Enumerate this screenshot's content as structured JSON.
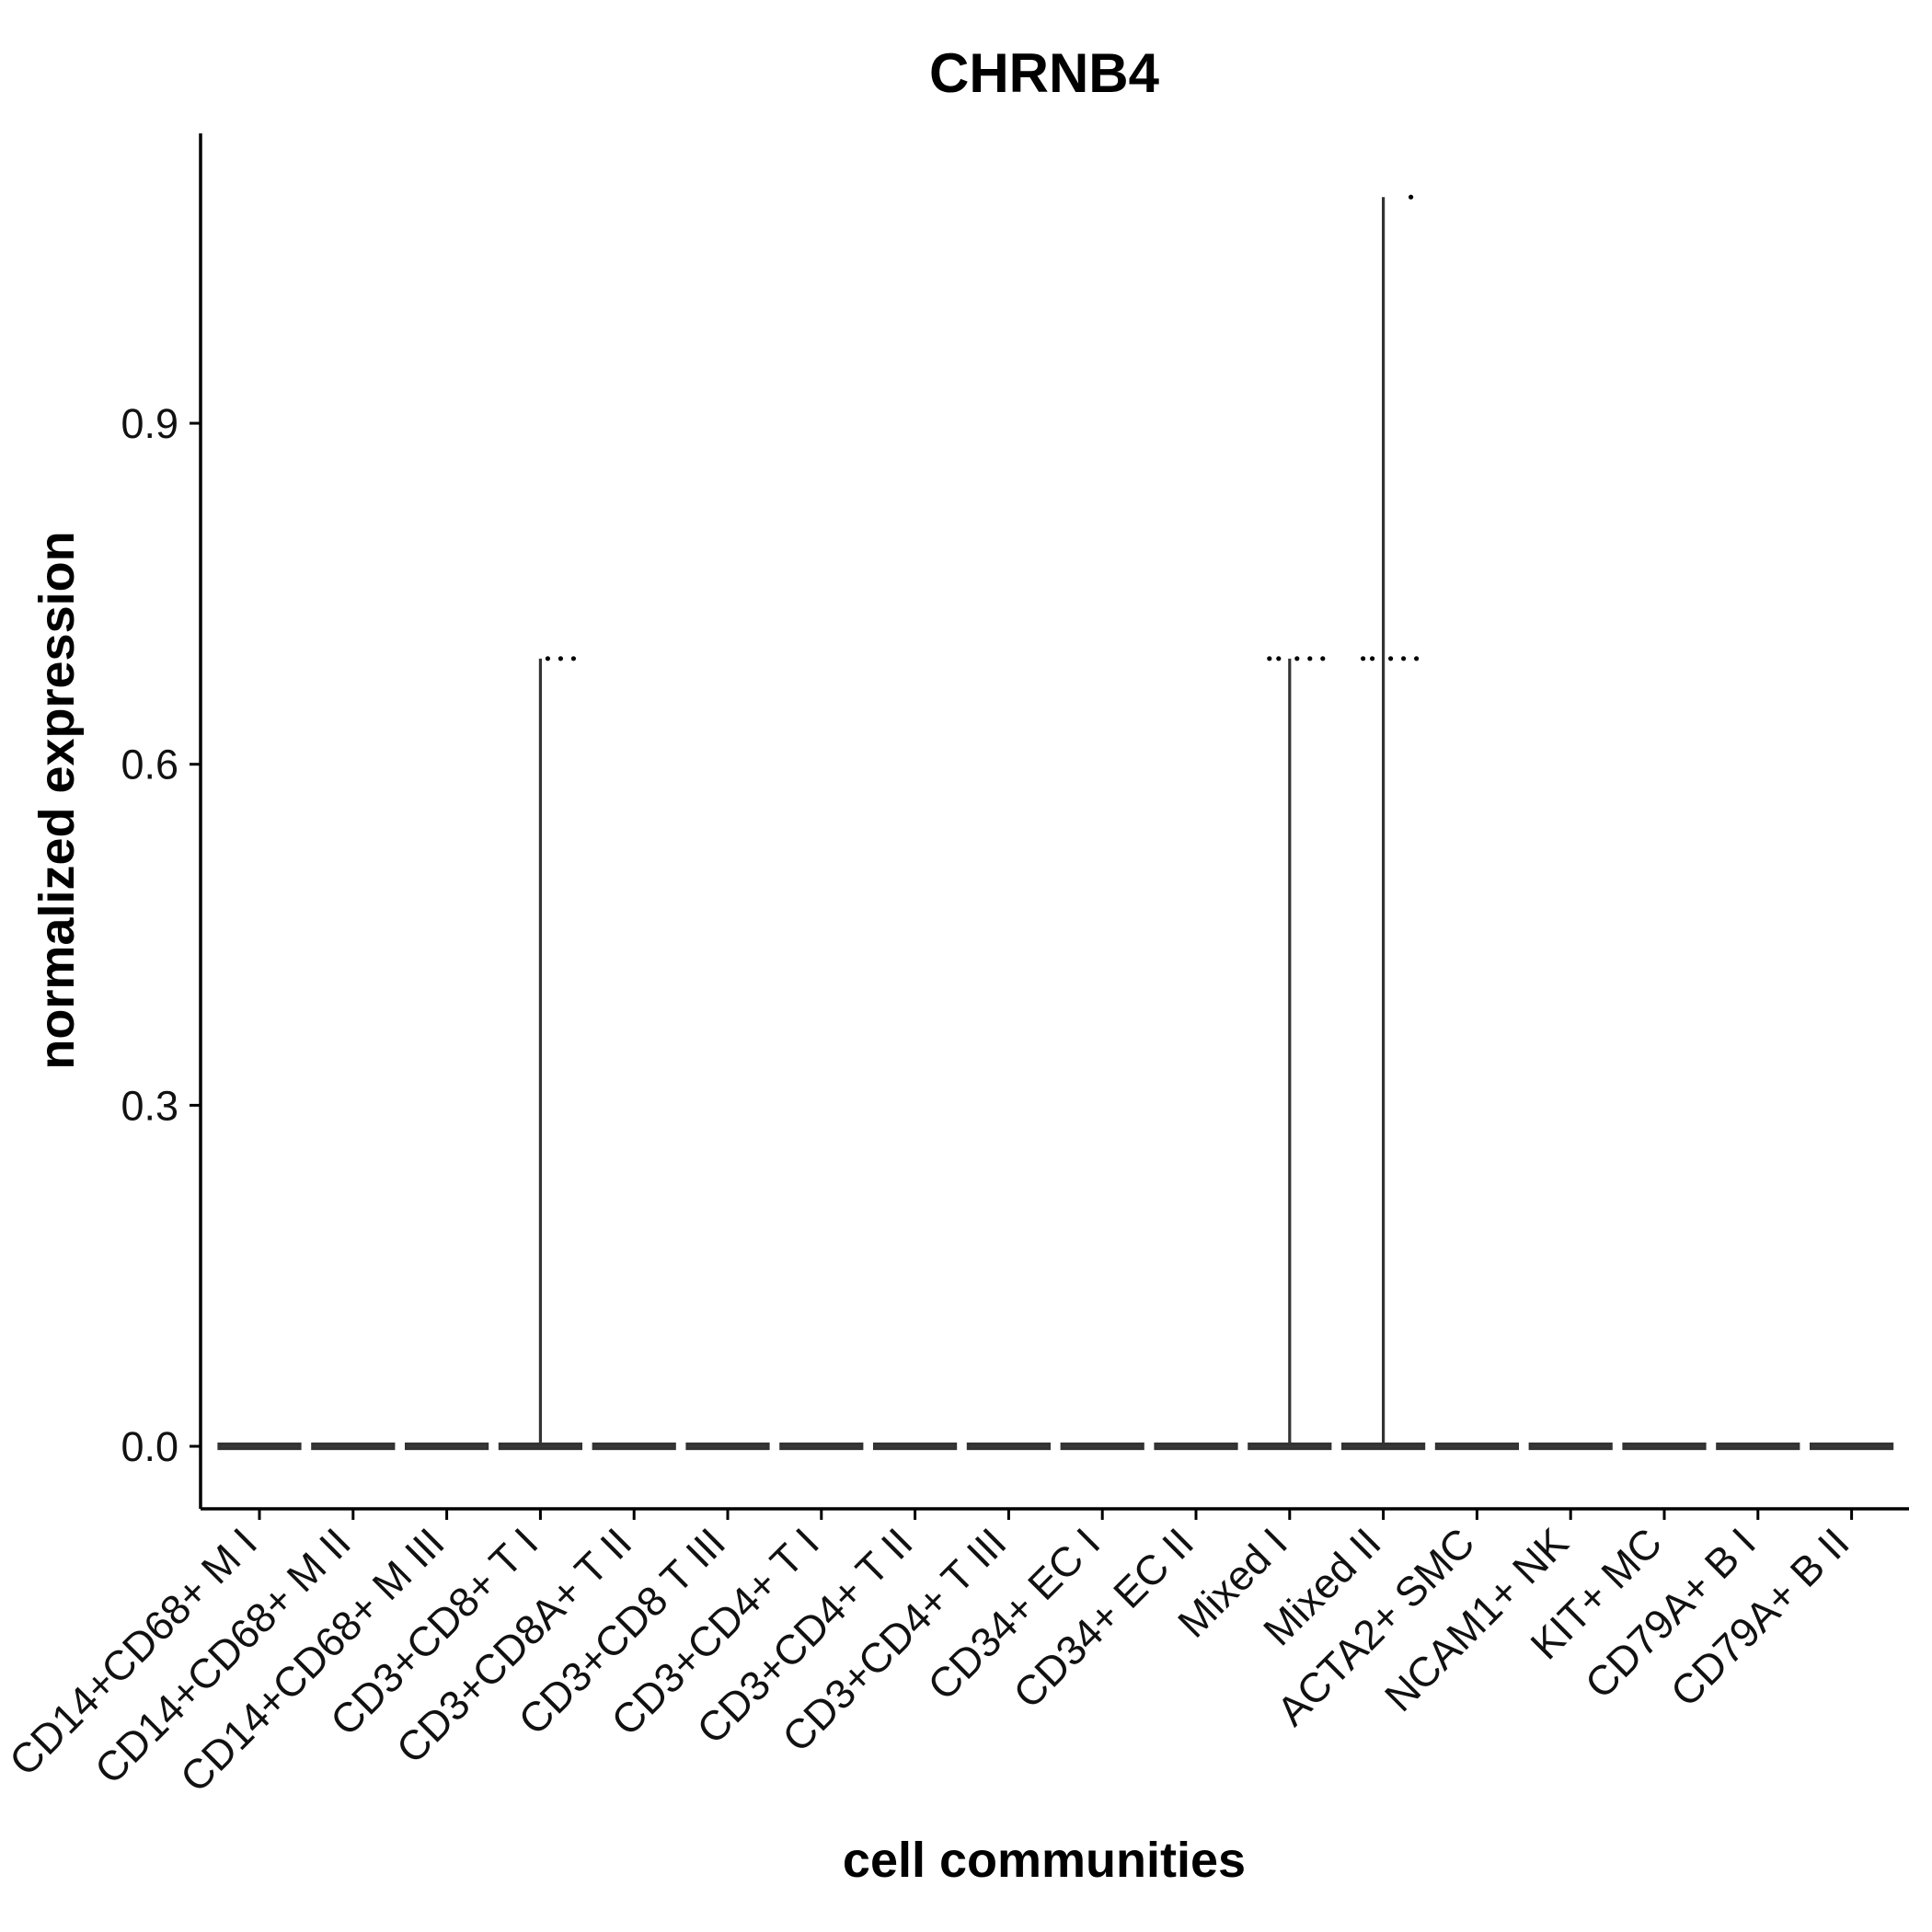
{
  "chart_data": {
    "type": "violin",
    "title": "CHRNB4",
    "xlabel": "cell communities",
    "ylabel": "normalized expression",
    "ylim": [
      -0.055,
      1.155
    ],
    "yticks": [
      0.0,
      0.3,
      0.6,
      0.9
    ],
    "ytick_labels": [
      "0.0",
      "0.3",
      "0.6",
      "0.9"
    ],
    "grid": false,
    "legend": "none",
    "categories": [
      "CD14+CD68+ M I",
      "CD14+CD68+ M II",
      "CD14+CD68+ M III",
      "CD3+CD8+ T I",
      "CD3+CD8A+ T II",
      "CD3+CD8 T III",
      "CD3+CD4+ T I",
      "CD3+CD4+ T II",
      "CD3+CD4+ T III",
      "CD34+ EC I",
      "CD34+ EC II",
      "Mixed I",
      "Mixed II",
      "ACTA2+ SMC",
      "NCAM1+ NK",
      "KIT+ MC",
      "CD79A+ B I",
      "CD79A+ B II"
    ],
    "max_values": [
      0,
      0,
      0,
      0.693,
      0,
      0,
      0,
      0,
      0,
      0,
      0,
      0.693,
      1.099,
      0,
      0,
      0,
      0,
      0
    ],
    "nonzero_points": [
      {
        "category": "CD3+CD8+ T I",
        "values": [
          0.693,
          0.693,
          0.693
        ]
      },
      {
        "category": "Mixed I",
        "values": [
          0.693,
          0.693,
          0.693,
          0.693,
          0.693
        ]
      },
      {
        "category": "Mixed II",
        "values": [
          0.693,
          0.693,
          0.693,
          0.693,
          0.693,
          1.099
        ]
      }
    ],
    "colors": {
      "violin": "#333333",
      "points": "#000000",
      "axis": "#000000"
    }
  }
}
